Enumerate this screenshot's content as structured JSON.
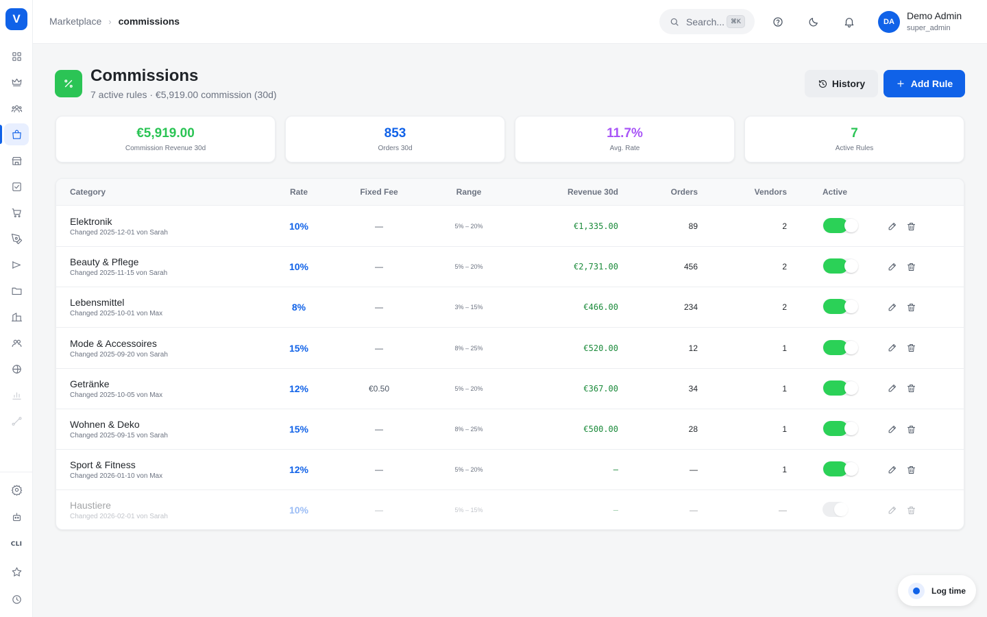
{
  "sidebar": {
    "logo": "V",
    "cli_label": "CLI",
    "items": [
      {
        "icon": "dashboard-grid-icon"
      },
      {
        "icon": "crown-icon"
      },
      {
        "icon": "users-group-icon"
      },
      {
        "icon": "shopping-bag-icon",
        "active": true
      },
      {
        "icon": "storefront-icon"
      },
      {
        "icon": "checkbox-icon"
      },
      {
        "icon": "cart-icon"
      },
      {
        "icon": "pen-tool-icon"
      },
      {
        "icon": "megaphone-icon"
      },
      {
        "icon": "folder-icon"
      },
      {
        "icon": "building-icon"
      },
      {
        "icon": "team-icon"
      },
      {
        "icon": "globe-icon"
      },
      {
        "icon": "bar-chart-icon"
      },
      {
        "icon": "route-icon"
      },
      {
        "icon": "settings-icon"
      },
      {
        "icon": "bot-icon"
      },
      {
        "icon": "cli-icon"
      },
      {
        "icon": "star-icon"
      },
      {
        "icon": "clock-icon"
      }
    ]
  },
  "header": {
    "breadcrumb": [
      "Marketplace",
      "commissions"
    ],
    "search_placeholder": "Search...",
    "search_shortcut": "⌘K",
    "user": {
      "initials": "DA",
      "name": "Demo Admin",
      "role": "super_admin"
    }
  },
  "page": {
    "title": "Commissions",
    "subtitle": "7 active rules · €5,919.00 commission (30d)",
    "history_label": "History",
    "add_label": "Add Rule"
  },
  "stats": [
    {
      "value": "€5,919.00",
      "label": "Commission Revenue 30d",
      "color": "#2bc455"
    },
    {
      "value": "853",
      "label": "Orders 30d",
      "color": "#1062e8"
    },
    {
      "value": "11.7%",
      "label": "Avg. Rate",
      "color": "#a855f7"
    },
    {
      "value": "7",
      "label": "Active Rules",
      "color": "#2bc455"
    }
  ],
  "table": {
    "headers": {
      "category": "Category",
      "rate": "Rate",
      "fixed_fee": "Fixed Fee",
      "range": "Range",
      "revenue": "Revenue 30d",
      "orders": "Orders",
      "vendors": "Vendors",
      "active": "Active"
    },
    "rows": [
      {
        "name": "Elektronik",
        "meta": "Changed 2025-12-01 von Sarah",
        "rate": "10%",
        "fee": "—",
        "range": "5% – 20%",
        "revenue": "€1,335.00",
        "orders": "89",
        "vendors": "2",
        "active": true
      },
      {
        "name": "Beauty & Pflege",
        "meta": "Changed 2025-11-15 von Sarah",
        "rate": "10%",
        "fee": "—",
        "range": "5% – 20%",
        "revenue": "€2,731.00",
        "orders": "456",
        "vendors": "2",
        "active": true
      },
      {
        "name": "Lebensmittel",
        "meta": "Changed 2025-10-01 von Max",
        "rate": "8%",
        "fee": "—",
        "range": "3% – 15%",
        "revenue": "€466.00",
        "orders": "234",
        "vendors": "2",
        "active": true
      },
      {
        "name": "Mode & Accessoires",
        "meta": "Changed 2025-09-20 von Sarah",
        "rate": "15%",
        "fee": "—",
        "range": "8% – 25%",
        "revenue": "€520.00",
        "orders": "12",
        "vendors": "1",
        "active": true
      },
      {
        "name": "Getränke",
        "meta": "Changed 2025-10-05 von Max",
        "rate": "12%",
        "fee": "€0.50",
        "range": "5% – 20%",
        "revenue": "€367.00",
        "orders": "34",
        "vendors": "1",
        "active": true
      },
      {
        "name": "Wohnen & Deko",
        "meta": "Changed 2025-09-15 von Sarah",
        "rate": "15%",
        "fee": "—",
        "range": "8% – 25%",
        "revenue": "€500.00",
        "orders": "28",
        "vendors": "1",
        "active": true
      },
      {
        "name": "Sport & Fitness",
        "meta": "Changed 2026-01-10 von Max",
        "rate": "12%",
        "fee": "—",
        "range": "5% – 20%",
        "revenue": "—",
        "orders": "—",
        "vendors": "1",
        "active": true
      },
      {
        "name": "Haustiere",
        "meta": "Changed 2026-02-01 von Sarah",
        "rate": "10%",
        "fee": "—",
        "range": "5% – 15%",
        "revenue": "—",
        "orders": "—",
        "vendors": "—",
        "active": false
      }
    ]
  },
  "log_time_label": "Log time"
}
